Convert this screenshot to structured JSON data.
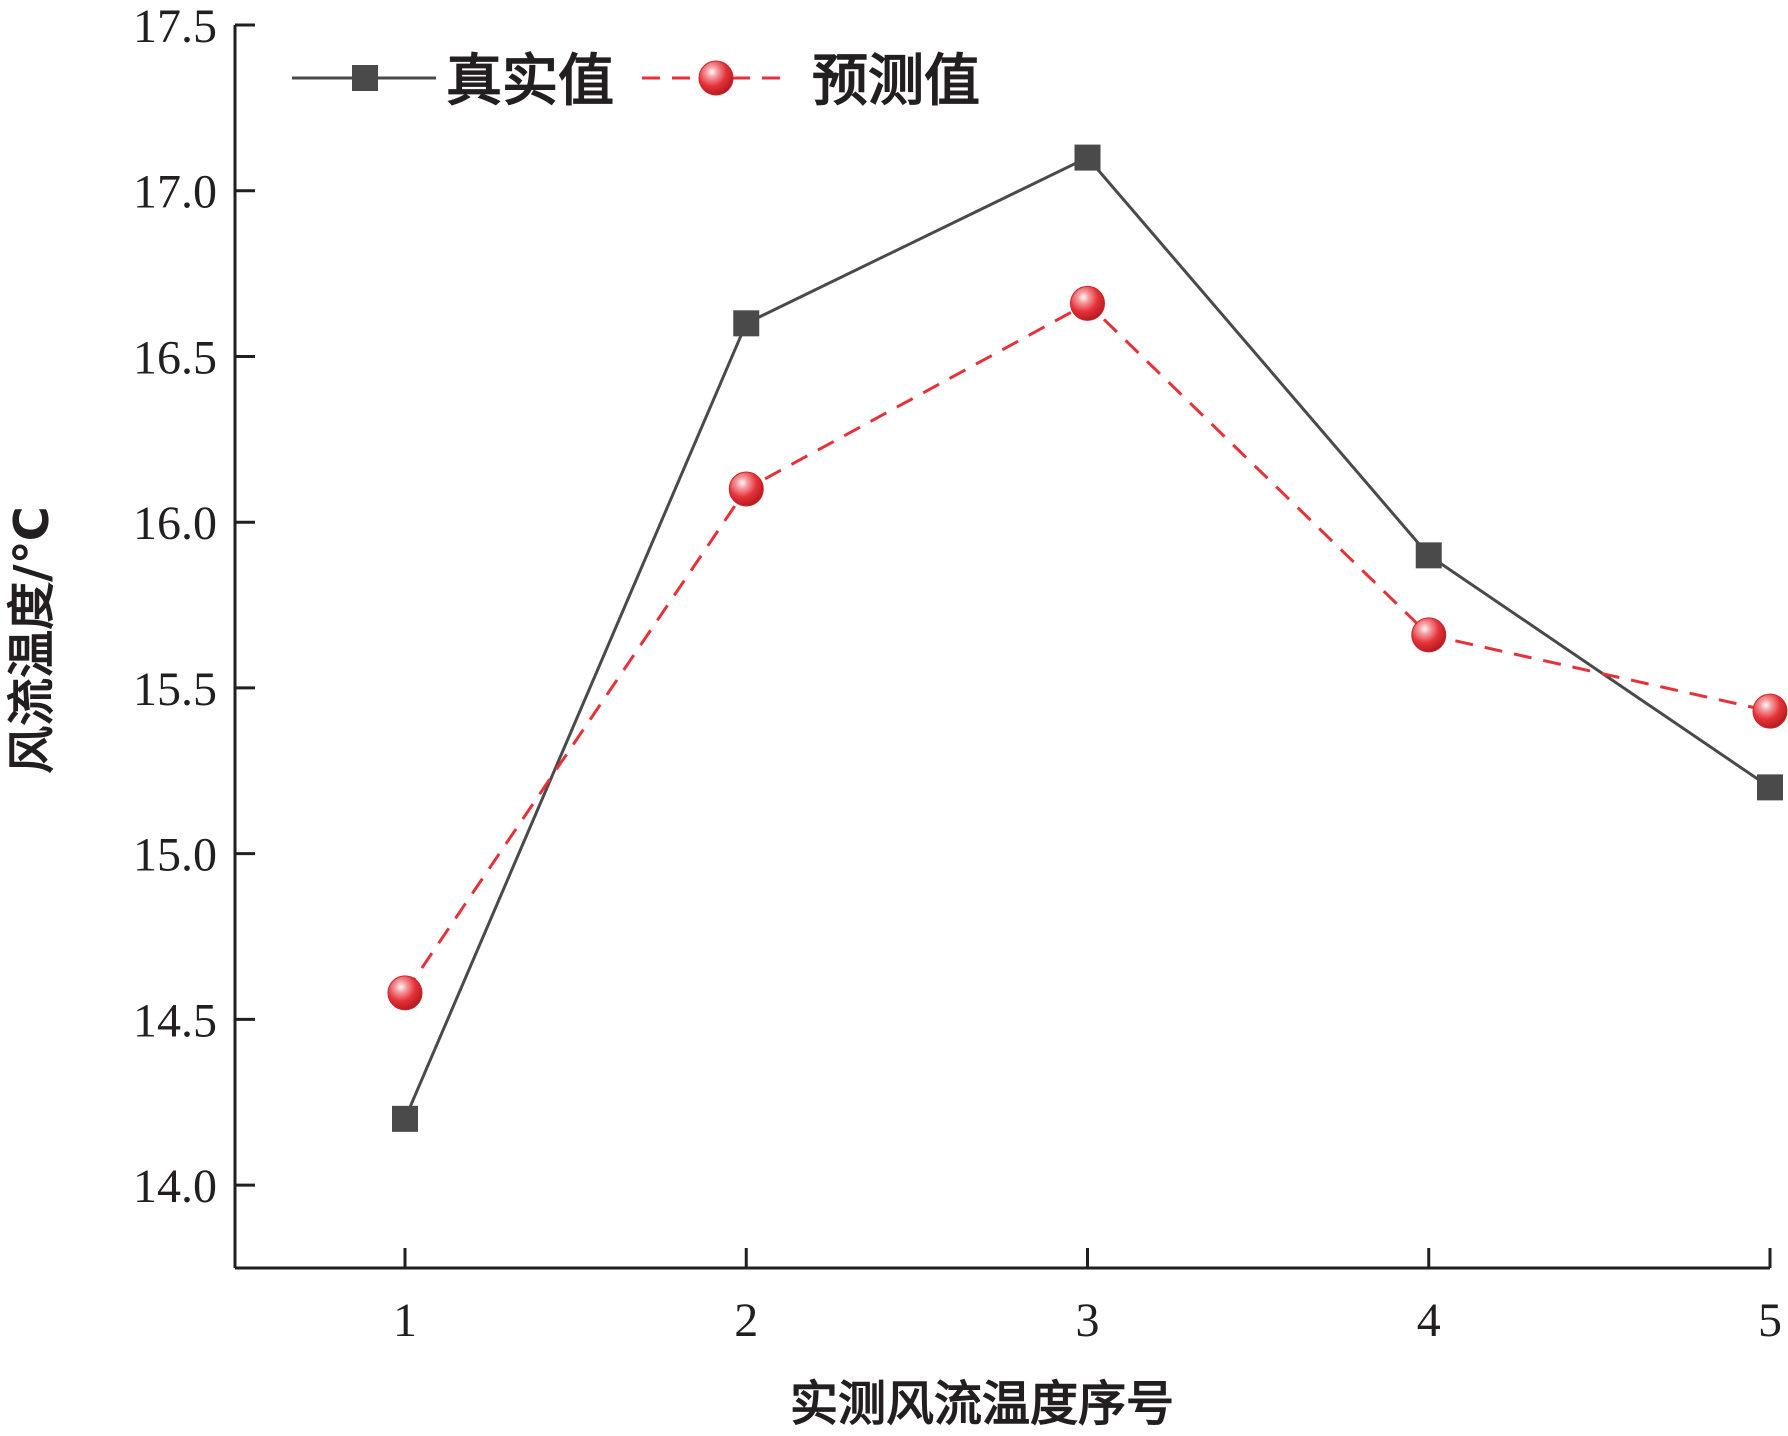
{
  "chart_data": {
    "type": "line",
    "title": "",
    "xlabel": "实测风流温度序号",
    "ylabel": "风流温度/℃",
    "x": [
      1,
      2,
      3,
      4,
      5
    ],
    "x_tick_labels": [
      "1",
      "2",
      "3",
      "4",
      "5"
    ],
    "ylim": [
      13.75,
      17.5
    ],
    "y_ticks": [
      14.0,
      14.5,
      15.0,
      15.5,
      16.0,
      16.5,
      17.0,
      17.5
    ],
    "y_tick_labels": [
      "14.0",
      "14.5",
      "15.0",
      "15.5",
      "16.0",
      "16.5",
      "17.0",
      "17.5"
    ],
    "grid": false,
    "legend_position": "top-left",
    "series": [
      {
        "name": "真实值",
        "values": [
          14.2,
          16.6,
          17.1,
          15.9,
          15.2
        ],
        "color": "#4a4a4a",
        "line_style": "solid",
        "marker": "square"
      },
      {
        "name": "预测值",
        "values": [
          14.58,
          16.1,
          16.66,
          15.66,
          15.43
        ],
        "color": "#e53238",
        "line_style": "dashed",
        "marker": "sphere"
      }
    ]
  }
}
